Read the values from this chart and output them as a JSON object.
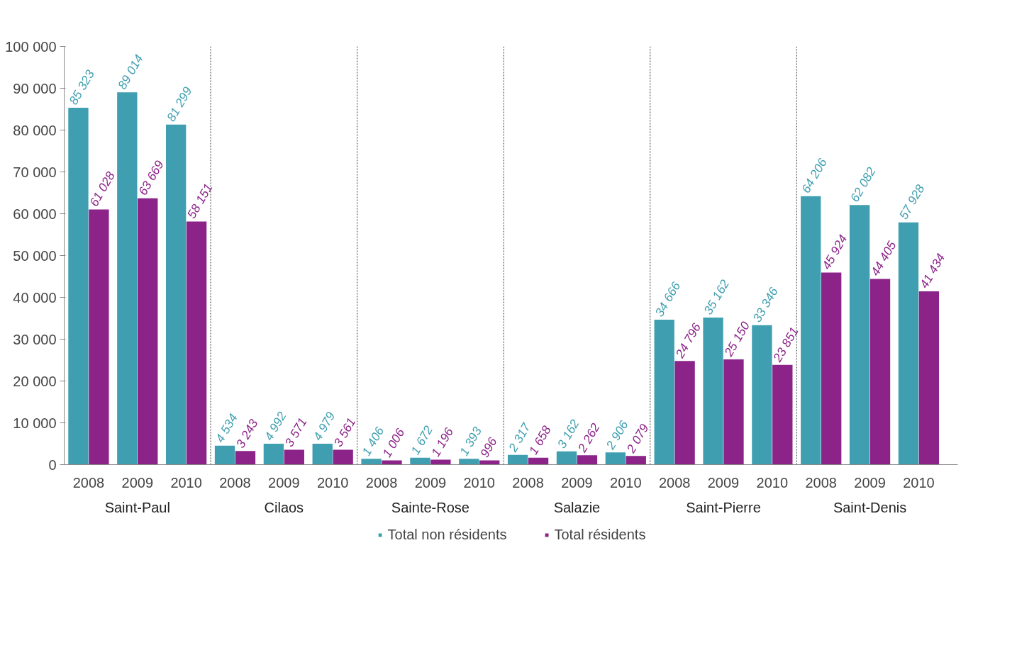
{
  "chart_data": {
    "type": "bar",
    "categories": [
      "2008",
      "2009",
      "2010",
      "2008",
      "2009",
      "2010",
      "2008",
      "2009",
      "2010",
      "2008",
      "2009",
      "2010",
      "2008",
      "2009",
      "2010",
      "2008",
      "2009",
      "2010"
    ],
    "series": [
      {
        "name": "Total non résidents",
        "color": "#3f9fb0",
        "values": [
          85323,
          89014,
          81299,
          4534,
          4992,
          4979,
          1406,
          1672,
          1393,
          2317,
          3162,
          2906,
          34666,
          35162,
          33346,
          64206,
          62082,
          57928
        ],
        "value_labels": [
          "85 323",
          "89 014",
          "81 299",
          "4 534",
          "4 992",
          "4 979",
          "1 406",
          "1 672",
          "1 393",
          "2 317",
          "3 162",
          "2 906",
          "34 666",
          "35 162",
          "33 346",
          "64 206",
          "62 082",
          "57 928"
        ]
      },
      {
        "name": "Total résidents",
        "color": "#8b2389",
        "values": [
          61028,
          63669,
          58151,
          3243,
          3571,
          3561,
          1006,
          1196,
          996,
          1658,
          2262,
          2079,
          24796,
          25150,
          23851,
          45924,
          44405,
          41434
        ],
        "value_labels": [
          "61 028",
          "63 669",
          "58 151",
          "3 243",
          "3 571",
          "3 561",
          "1 006",
          "1 196",
          "996",
          "1 658",
          "2 262",
          "2 079",
          "24 796",
          "25 150",
          "23 851",
          "45 924",
          "44 405",
          "41 434"
        ]
      }
    ],
    "annotations": [
      "Saint-Paul",
      "Cilaos",
      "Sainte-Rose",
      "Salazie",
      "Saint-Pierre",
      "Saint-Denis"
    ],
    "ylim": [
      0,
      100000
    ],
    "yticks": [
      {
        "value": 0,
        "label": "0"
      },
      {
        "value": 10000,
        "label": "10 000"
      },
      {
        "value": 20000,
        "label": "20 000"
      },
      {
        "value": 30000,
        "label": "30 000"
      },
      {
        "value": 40000,
        "label": "40 000"
      },
      {
        "value": 50000,
        "label": "50 000"
      },
      {
        "value": 60000,
        "label": "60 000"
      },
      {
        "value": 70000,
        "label": "70 000"
      },
      {
        "value": 80000,
        "label": "80 000"
      },
      {
        "value": 90000,
        "label": "90 000"
      },
      {
        "value": 100000,
        "label": "100 000"
      }
    ],
    "grid": false,
    "legend": "bottom"
  }
}
